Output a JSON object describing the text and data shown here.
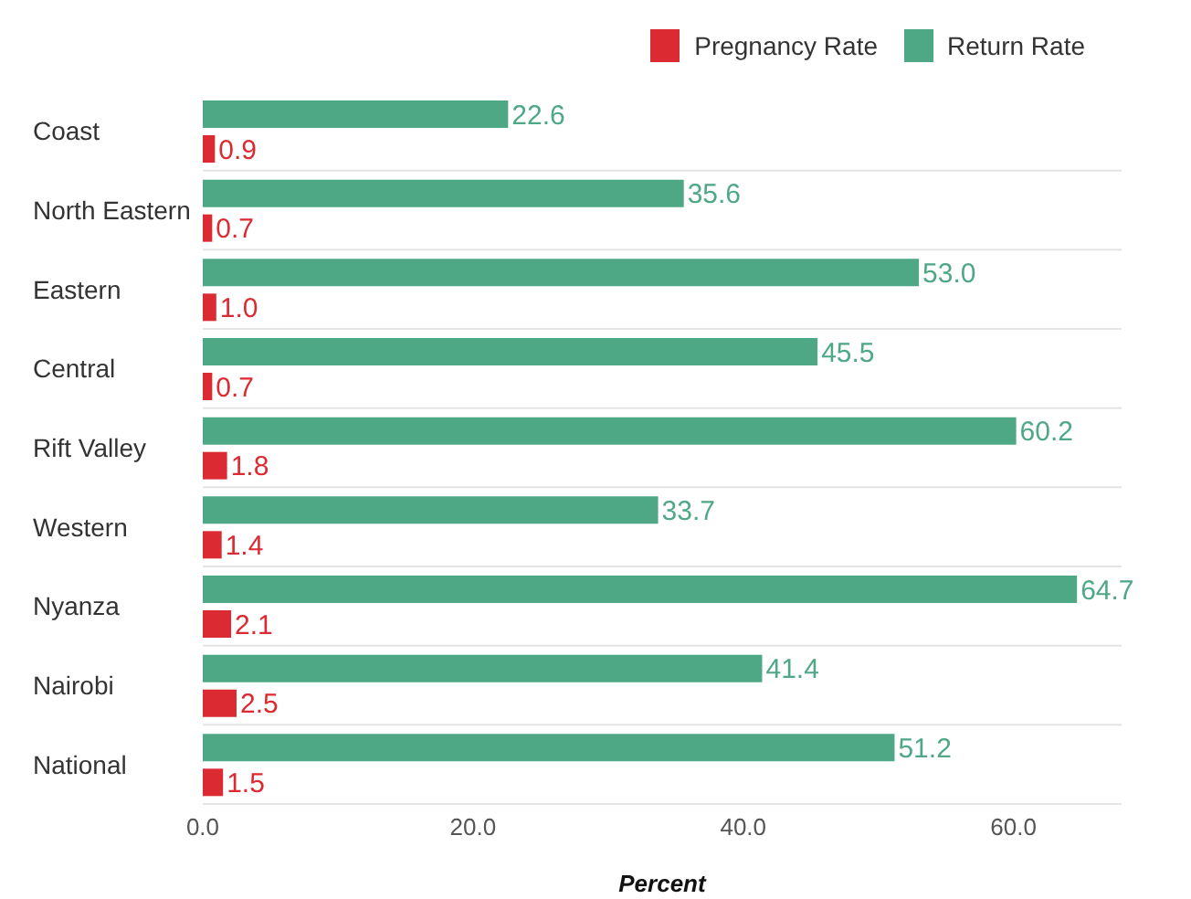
{
  "chart_data": {
    "type": "bar",
    "orientation": "horizontal",
    "xlabel": "Percent",
    "categories": [
      "Coast",
      "North Eastern",
      "Eastern",
      "Central",
      "Rift Valley",
      "Western",
      "Nyanza",
      "Nairobi",
      "National"
    ],
    "series": [
      {
        "name": "Pregnancy Rate",
        "color": "#dc2a32",
        "values": [
          0.9,
          0.7,
          1.0,
          0.7,
          1.8,
          1.4,
          2.1,
          2.5,
          1.5
        ],
        "value_labels": [
          "0.9",
          "0.7",
          "1.0",
          "0.7",
          "1.8",
          "1.4",
          "2.1",
          "2.5",
          "1.5"
        ]
      },
      {
        "name": "Return Rate",
        "color": "#4ea886",
        "values": [
          22.6,
          35.6,
          53.0,
          45.5,
          60.2,
          33.7,
          64.7,
          41.4,
          51.2
        ],
        "value_labels": [
          "22.6",
          "35.6",
          "53.0",
          "45.5",
          "60.2",
          "33.7",
          "64.7",
          "41.4",
          "51.2"
        ]
      }
    ],
    "xlim": [
      0,
      68
    ],
    "xticks": [
      {
        "value": 0,
        "label": "0.0"
      },
      {
        "value": 20,
        "label": "20.0"
      },
      {
        "value": 40,
        "label": "40.0"
      },
      {
        "value": 60,
        "label": "60.0"
      }
    ],
    "grid": "y",
    "legend": "top right"
  }
}
